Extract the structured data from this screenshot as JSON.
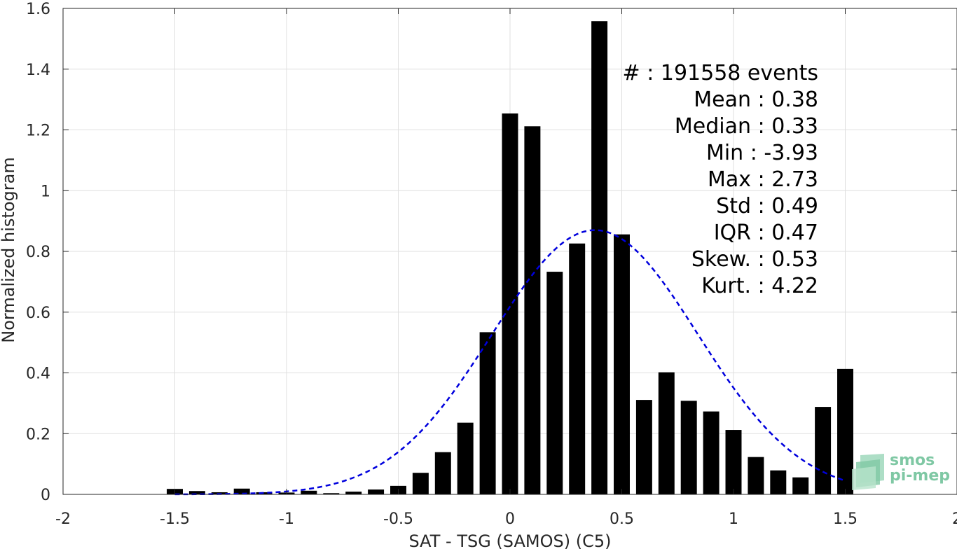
{
  "chart_data": {
    "type": "bar",
    "xlabel": "SAT - TSG (SAMOS) (C5)",
    "ylabel": "Normalized histogram",
    "xlim": [
      -2,
      2
    ],
    "ylim": [
      0,
      1.6
    ],
    "grid": true,
    "x_ticks": [
      "-2",
      "-1.5",
      "-1",
      "-0.5",
      "0",
      "0.5",
      "1",
      "1.5",
      "2"
    ],
    "y_ticks": [
      "0",
      "0.2",
      "0.4",
      "0.6",
      "0.8",
      "1",
      "1.2",
      "1.4",
      "1.6"
    ],
    "bin_width": 0.1,
    "x": [
      -1.5,
      -1.4,
      -1.3,
      -1.2,
      -1.1,
      -1.0,
      -0.9,
      -0.8,
      -0.7,
      -0.6,
      -0.5,
      -0.4,
      -0.3,
      -0.2,
      -0.1,
      0.0,
      0.1,
      0.2,
      0.3,
      0.4,
      0.5,
      0.6,
      0.7,
      0.8,
      0.9,
      1.0,
      1.1,
      1.2,
      1.3,
      1.4,
      1.5
    ],
    "values": [
      0.018,
      0.011,
      0.007,
      0.019,
      0.007,
      0.006,
      0.012,
      0.004,
      0.009,
      0.016,
      0.028,
      0.071,
      0.139,
      0.236,
      0.534,
      1.254,
      1.212,
      0.733,
      0.826,
      1.558,
      0.856,
      0.311,
      0.402,
      0.308,
      0.273,
      0.212,
      0.123,
      0.079,
      0.056,
      0.288,
      0.413
    ],
    "bar_color": "#000000",
    "fit_curve": {
      "style": "dashed",
      "color": "#0000dd",
      "mean": 0.38,
      "std": 0.46,
      "peak": 0.87,
      "x_range": [
        -1.5,
        1.5
      ]
    },
    "annotations": [
      "#  : 191558 events",
      "Mean : 0.38",
      "Median : 0.33",
      "Min : -3.93",
      "Max : 2.73",
      "Std : 0.49",
      "IQR : 0.47",
      "Skew. : 0.53",
      "Kurt. : 4.22"
    ]
  },
  "logo": {
    "line1": "smos",
    "line2": "pi-mep",
    "color": "#7fc8a4"
  }
}
